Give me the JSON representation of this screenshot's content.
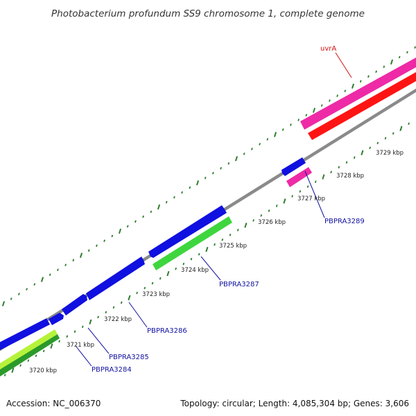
{
  "title": "Photobacterium profundum SS9 chromosome 1, complete genome",
  "footer": {
    "accession": "Accession: NC_006370",
    "summary": "Topology: circular; Length: 4,085,304 bp; Genes: 3,606"
  },
  "colors": {
    "backbone": "#8a8a8a",
    "tick": "#2e7d2e",
    "gene_blue": "#1010e0",
    "gene_green": "#3ed63e",
    "gene_pink": "#ee2aa6",
    "gene_red": "#ff1414",
    "gene_lime": "#b6f23a",
    "gene_darkgreen": "#2a9a2a",
    "label_blue": "#1010a0",
    "label_red": "#d01010"
  },
  "kbp_labels": [
    "3720 kbp",
    "3721 kbp",
    "3722 kbp",
    "3723 kbp",
    "3724 kbp",
    "3725 kbp",
    "3726 kbp",
    "3727 kbp",
    "3728 kbp",
    "3729 kbp"
  ],
  "gene_labels": {
    "uvra": "uvrA",
    "pbpra3289": "PBPRA3289",
    "pbpra3287": "PBPRA3287",
    "pbpra3286": "PBPRA3286",
    "pbpra3285": "PBPRA3285",
    "pbpra3284": "PBPRA3284"
  }
}
